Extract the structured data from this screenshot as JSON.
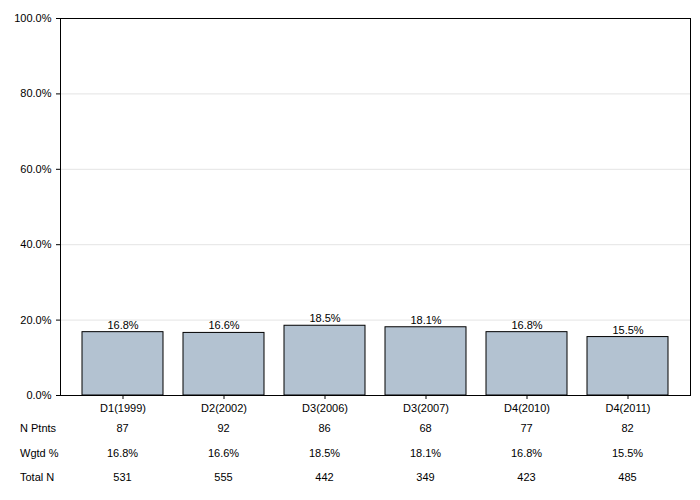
{
  "chart_data": {
    "type": "bar",
    "categories": [
      "D1(1999)",
      "D2(2002)",
      "D3(2006)",
      "D3(2007)",
      "D4(2010)",
      "D4(2011)"
    ],
    "values": [
      16.8,
      16.6,
      18.5,
      18.1,
      16.8,
      15.5
    ],
    "value_labels": [
      "16.8%",
      "16.6%",
      "18.5%",
      "18.1%",
      "16.8%",
      "15.5%"
    ],
    "data_labels": true,
    "color": "#b3c2d1",
    "ylim": [
      0,
      100
    ],
    "yticks": [
      {
        "value": 0,
        "label": "0.0%"
      },
      {
        "value": 20,
        "label": "20.0%"
      },
      {
        "value": 40,
        "label": "40.0%"
      },
      {
        "value": 60,
        "label": "60.0%"
      },
      {
        "value": 80,
        "label": "80.0%"
      },
      {
        "value": 100,
        "label": "100.0%"
      }
    ],
    "grid": true,
    "table": [
      {
        "name": "N Ptnts",
        "values": [
          87,
          92,
          86,
          68,
          77,
          82
        ]
      },
      {
        "name": "Wgtd %",
        "values": [
          16.8,
          16.6,
          18.5,
          18.1,
          16.8,
          15.5
        ],
        "value_labels": [
          "16.8%",
          "16.6%",
          "18.5%",
          "18.1%",
          "16.8%",
          "15.5%"
        ]
      },
      {
        "name": "Total N",
        "values": [
          531,
          555,
          442,
          349,
          423,
          485
        ]
      }
    ]
  }
}
